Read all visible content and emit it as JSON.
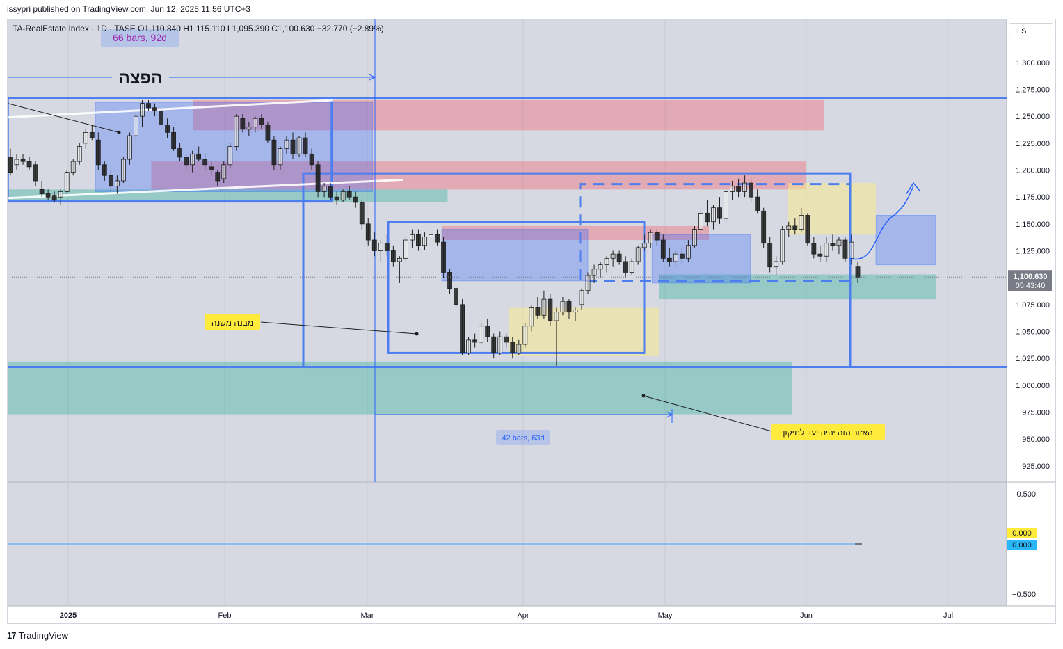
{
  "header": {
    "published": "issypri published on TradingView.com, Jun 12, 2025 11:56 UTC+3"
  },
  "legend": {
    "symbol": "TA-RealEstate Index · 1D · TASE",
    "o": "O1,110.840",
    "h": "H1,115.110",
    "l": "L1,095.390",
    "c": "C1,100.630",
    "chg": "−32.770 (−2.89%)"
  },
  "currency": "ILS",
  "footer": {
    "brand": "TradingView"
  },
  "colors": {
    "up": "#1e1e1e",
    "down": "#1e1e1e",
    "accent_blue": "#2962ff",
    "red_zone": "#f7525f",
    "green_zone": "#22ab94",
    "yellow_zone": "#f7e98e",
    "price_tag": "#787b86",
    "yellow_tag": "#ffeb3b",
    "cyan_tag": "#29b6f6"
  },
  "chart_data": {
    "type": "candlestick",
    "title": "TA-RealEstate Index · 1D · TASE",
    "y_ticks": [
      "1,325.000",
      "1,300.000",
      "1,275.000",
      "1,250.000",
      "1,225.000",
      "1,200.000",
      "1,175.000",
      "1,150.000",
      "1,125.000",
      "1,100.000",
      "1,075.000",
      "1,050.000",
      "1,025.000",
      "1,000.000",
      "975.000",
      "950.000",
      "925.000"
    ],
    "ylim": [
      910,
      1340
    ],
    "x_ticks": [
      "2025",
      "Feb",
      "Mar",
      "Apr",
      "May",
      "Jun",
      "Jul"
    ],
    "last_price": "1,100.630",
    "countdown": "05:43:40",
    "candles": [
      [
        1212,
        1220,
        1195,
        1198
      ],
      [
        1205,
        1215,
        1200,
        1210
      ],
      [
        1210,
        1215,
        1205,
        1208
      ],
      [
        1208,
        1212,
        1200,
        1203
      ],
      [
        1205,
        1208,
        1185,
        1190
      ],
      [
        1182,
        1190,
        1175,
        1178
      ],
      [
        1178,
        1182,
        1172,
        1175
      ],
      [
        1176,
        1180,
        1170,
        1172
      ],
      [
        1175,
        1182,
        1168,
        1180
      ],
      [
        1180,
        1200,
        1178,
        1198
      ],
      [
        1198,
        1210,
        1195,
        1208
      ],
      [
        1208,
        1225,
        1205,
        1222
      ],
      [
        1225,
        1238,
        1220,
        1235
      ],
      [
        1235,
        1242,
        1228,
        1230
      ],
      [
        1228,
        1235,
        1200,
        1205
      ],
      [
        1205,
        1208,
        1190,
        1195
      ],
      [
        1195,
        1200,
        1180,
        1185
      ],
      [
        1185,
        1195,
        1178,
        1190
      ],
      [
        1190,
        1212,
        1188,
        1210
      ],
      [
        1210,
        1235,
        1205,
        1232
      ],
      [
        1232,
        1252,
        1228,
        1250
      ],
      [
        1250,
        1265,
        1240,
        1262
      ],
      [
        1262,
        1265,
        1255,
        1258
      ],
      [
        1258,
        1262,
        1250,
        1255
      ],
      [
        1255,
        1258,
        1240,
        1242
      ],
      [
        1242,
        1248,
        1230,
        1235
      ],
      [
        1235,
        1240,
        1218,
        1220
      ],
      [
        1220,
        1225,
        1208,
        1212
      ],
      [
        1212,
        1215,
        1200,
        1205
      ],
      [
        1205,
        1218,
        1198,
        1215
      ],
      [
        1215,
        1222,
        1208,
        1210
      ],
      [
        1210,
        1215,
        1200,
        1205
      ],
      [
        1203,
        1208,
        1195,
        1200
      ],
      [
        1198,
        1200,
        1185,
        1190
      ],
      [
        1192,
        1208,
        1188,
        1205
      ],
      [
        1205,
        1225,
        1202,
        1222
      ],
      [
        1222,
        1252,
        1218,
        1250
      ],
      [
        1248,
        1252,
        1235,
        1238
      ],
      [
        1238,
        1245,
        1232,
        1240
      ],
      [
        1240,
        1250,
        1235,
        1248
      ],
      [
        1248,
        1252,
        1238,
        1242
      ],
      [
        1242,
        1245,
        1225,
        1228
      ],
      [
        1228,
        1232,
        1200,
        1205
      ],
      [
        1205,
        1222,
        1200,
        1220
      ],
      [
        1220,
        1232,
        1215,
        1228
      ],
      [
        1228,
        1235,
        1210,
        1215
      ],
      [
        1215,
        1232,
        1212,
        1230
      ],
      [
        1230,
        1235,
        1212,
        1215
      ],
      [
        1215,
        1220,
        1200,
        1205
      ],
      [
        1205,
        1208,
        1175,
        1180
      ],
      [
        1180,
        1188,
        1175,
        1185
      ],
      [
        1185,
        1188,
        1172,
        1175
      ],
      [
        1175,
        1180,
        1168,
        1172
      ],
      [
        1172,
        1182,
        1170,
        1180
      ],
      [
        1180,
        1185,
        1172,
        1175
      ],
      [
        1175,
        1180,
        1165,
        1170
      ],
      [
        1170,
        1172,
        1145,
        1150
      ],
      [
        1150,
        1155,
        1130,
        1135
      ],
      [
        1135,
        1142,
        1120,
        1125
      ],
      [
        1125,
        1135,
        1115,
        1132
      ],
      [
        1132,
        1140,
        1120,
        1125
      ],
      [
        1125,
        1130,
        1110,
        1115
      ],
      [
        1115,
        1120,
        1095,
        1118
      ],
      [
        1118,
        1138,
        1115,
        1135
      ],
      [
        1135,
        1145,
        1128,
        1140
      ],
      [
        1140,
        1145,
        1125,
        1130
      ],
      [
        1130,
        1142,
        1126,
        1138
      ],
      [
        1138,
        1145,
        1130,
        1140
      ],
      [
        1140,
        1145,
        1130,
        1133
      ],
      [
        1133,
        1138,
        1100,
        1105
      ],
      [
        1105,
        1108,
        1085,
        1090
      ],
      [
        1090,
        1092,
        1072,
        1075
      ],
      [
        1075,
        1080,
        1028,
        1030
      ],
      [
        1030,
        1045,
        1028,
        1042
      ],
      [
        1042,
        1048,
        1035,
        1040
      ],
      [
        1040,
        1058,
        1038,
        1055
      ],
      [
        1055,
        1062,
        1040,
        1045
      ],
      [
        1045,
        1048,
        1025,
        1030
      ],
      [
        1030,
        1050,
        1028,
        1045
      ],
      [
        1045,
        1048,
        1035,
        1040
      ],
      [
        1040,
        1045,
        1025,
        1030
      ],
      [
        1030,
        1042,
        1028,
        1038
      ],
      [
        1038,
        1058,
        1035,
        1055
      ],
      [
        1055,
        1075,
        1050,
        1072
      ],
      [
        1072,
        1082,
        1062,
        1065
      ],
      [
        1065,
        1088,
        1062,
        1080
      ],
      [
        1080,
        1085,
        1055,
        1060
      ],
      [
        1060,
        1072,
        1018,
        1068
      ],
      [
        1068,
        1082,
        1065,
        1078
      ],
      [
        1078,
        1080,
        1062,
        1068
      ],
      [
        1068,
        1072,
        1060,
        1070
      ],
      [
        1075,
        1090,
        1070,
        1088
      ],
      [
        1088,
        1105,
        1085,
        1102
      ],
      [
        1102,
        1112,
        1095,
        1108
      ],
      [
        1108,
        1115,
        1100,
        1112
      ],
      [
        1112,
        1120,
        1105,
        1118
      ],
      [
        1118,
        1125,
        1110,
        1122
      ],
      [
        1122,
        1125,
        1112,
        1115
      ],
      [
        1115,
        1120,
        1100,
        1105
      ],
      [
        1105,
        1118,
        1102,
        1115
      ],
      [
        1115,
        1130,
        1112,
        1128
      ],
      [
        1128,
        1140,
        1125,
        1132
      ],
      [
        1132,
        1145,
        1128,
        1142
      ],
      [
        1142,
        1145,
        1130,
        1135
      ],
      [
        1135,
        1140,
        1115,
        1118
      ],
      [
        1118,
        1128,
        1110,
        1115
      ],
      [
        1115,
        1125,
        1110,
        1122
      ],
      [
        1122,
        1128,
        1112,
        1118
      ],
      [
        1118,
        1135,
        1115,
        1130
      ],
      [
        1130,
        1148,
        1128,
        1145
      ],
      [
        1145,
        1165,
        1140,
        1160
      ],
      [
        1160,
        1172,
        1148,
        1152
      ],
      [
        1152,
        1168,
        1145,
        1165
      ],
      [
        1165,
        1175,
        1150,
        1155
      ],
      [
        1155,
        1185,
        1150,
        1180
      ],
      [
        1180,
        1190,
        1172,
        1185
      ],
      [
        1185,
        1192,
        1175,
        1180
      ],
      [
        1180,
        1195,
        1175,
        1188
      ],
      [
        1188,
        1192,
        1170,
        1175
      ],
      [
        1175,
        1182,
        1160,
        1162
      ],
      [
        1162,
        1165,
        1128,
        1132
      ],
      [
        1132,
        1138,
        1105,
        1110
      ],
      [
        1110,
        1120,
        1102,
        1115
      ],
      [
        1115,
        1148,
        1112,
        1145
      ],
      [
        1145,
        1152,
        1138,
        1148
      ],
      [
        1148,
        1155,
        1140,
        1145
      ],
      [
        1145,
        1165,
        1142,
        1158
      ],
      [
        1158,
        1160,
        1130,
        1132
      ],
      [
        1132,
        1138,
        1118,
        1122
      ],
      [
        1122,
        1130,
        1115,
        1120
      ],
      [
        1120,
        1138,
        1115,
        1132
      ],
      [
        1132,
        1140,
        1125,
        1130
      ],
      [
        1130,
        1138,
        1122,
        1135
      ],
      [
        1135,
        1138,
        1115,
        1118
      ],
      [
        1118,
        1140,
        1112,
        1133
      ],
      [
        1110,
        1115,
        1095,
        1100
      ]
    ],
    "zones": [
      {
        "kind": "red",
        "x0": 0.222,
        "x1": 0.978,
        "y0": 1237,
        "y1": 1265
      },
      {
        "kind": "red",
        "x0": 0.172,
        "x1": 0.956,
        "y0": 1182,
        "y1": 1208
      },
      {
        "kind": "red",
        "x0": 0.52,
        "x1": 0.84,
        "y0": 1135,
        "y1": 1148
      },
      {
        "kind": "green",
        "x0": 0,
        "x1": 0.527,
        "y0": 1170,
        "y1": 1182
      },
      {
        "kind": "green",
        "x0": 0.78,
        "x1": 1.2,
        "y0": 1080,
        "y1": 1103
      },
      {
        "kind": "green",
        "x0": 0,
        "x1": 0.94,
        "y0": 973,
        "y1": 1022
      },
      {
        "kind": "blue",
        "x0": 0.105,
        "x1": 0.437,
        "y0": 1180,
        "y1": 1263
      },
      {
        "kind": "blue",
        "x0": 0.52,
        "x1": 0.695,
        "y0": 1097,
        "y1": 1145
      },
      {
        "kind": "blue",
        "x0": 0.772,
        "x1": 0.89,
        "y0": 1095,
        "y1": 1140
      },
      {
        "kind": "blue",
        "x0": 1.04,
        "x1": 1.17,
        "y0": 1112,
        "y1": 1158
      },
      {
        "kind": "yellow",
        "x0": 0.6,
        "x1": 0.78,
        "y0": 1027,
        "y1": 1072
      },
      {
        "kind": "yellow",
        "x0": 0.935,
        "x1": 1.04,
        "y0": 1140,
        "y1": 1188
      }
    ],
    "osc_ticks": [
      "0.500",
      "−0.500"
    ],
    "osc_values": [
      "0.000",
      "0.000"
    ]
  },
  "annotations": {
    "dist": "הפצה",
    "sub_structure": "מבנה משנה",
    "target": "האזור הזה יהיה יעד לתיקון",
    "bars1": "66 bars, 92d",
    "bars2": "42 bars, 63d"
  }
}
